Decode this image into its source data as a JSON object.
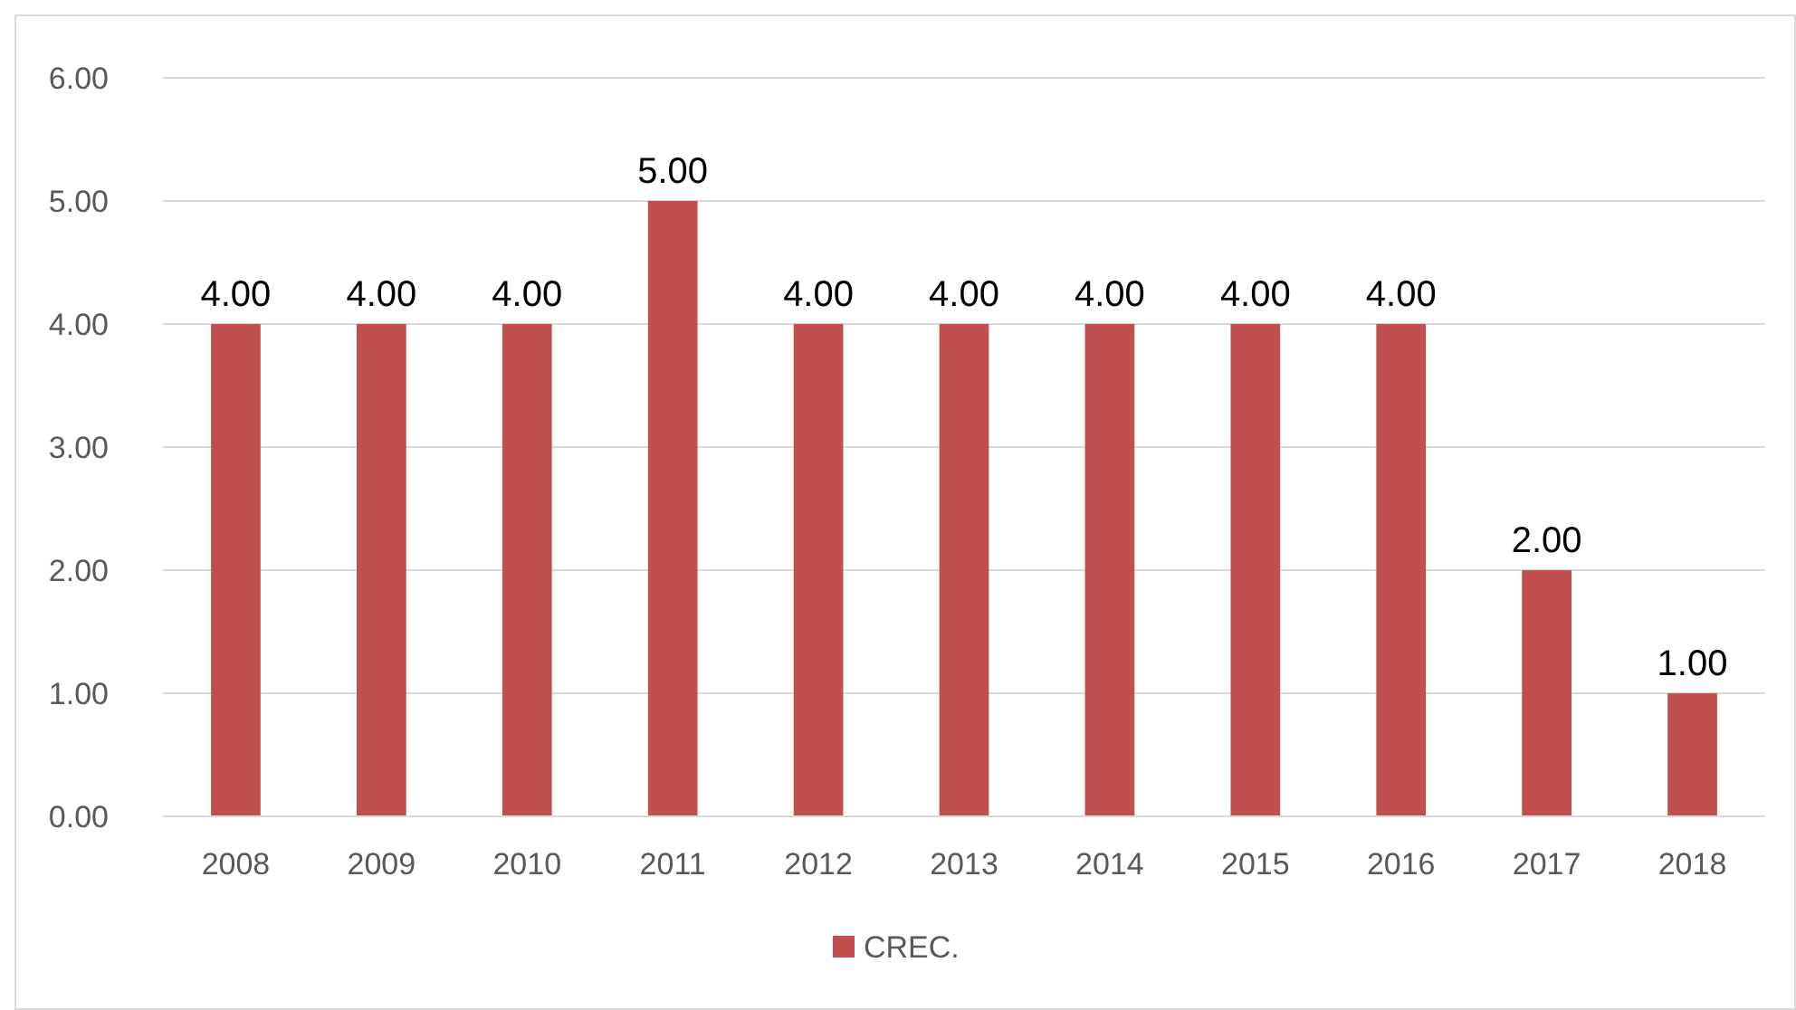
{
  "chart_data": {
    "type": "bar",
    "categories": [
      "2008",
      "2009",
      "2010",
      "2011",
      "2012",
      "2013",
      "2014",
      "2015",
      "2016",
      "2017",
      "2018"
    ],
    "series": [
      {
        "name": "CREC.",
        "color": "#c0504d",
        "values": [
          4,
          4,
          4,
          5,
          4,
          4,
          4,
          4,
          4,
          2,
          1
        ],
        "value_labels": [
          "4.00",
          "4.00",
          "4.00",
          "5.00",
          "4.00",
          "4.00",
          "4.00",
          "4.00",
          "4.00",
          "2.00",
          "1.00"
        ]
      }
    ],
    "ylim": [
      0,
      6
    ],
    "yticks": [
      {
        "value": 0,
        "label": "0.00"
      },
      {
        "value": 1,
        "label": "1.00"
      },
      {
        "value": 2,
        "label": "2.00"
      },
      {
        "value": 3,
        "label": "3.00"
      },
      {
        "value": 4,
        "label": "4.00"
      },
      {
        "value": 5,
        "label": "5.00"
      },
      {
        "value": 6,
        "label": "6.00"
      }
    ],
    "grid": "y",
    "legend": "bottom"
  }
}
